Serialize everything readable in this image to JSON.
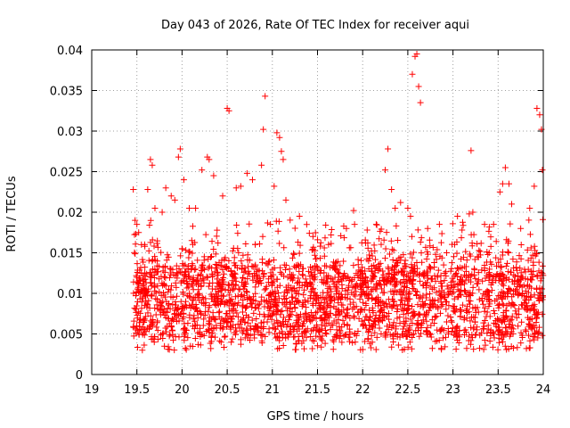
{
  "chart_data": {
    "type": "scatter",
    "title": "Day 043 of 2026, Rate Of TEC Index for receiver aqui",
    "xlabel": "GPS time / hours",
    "ylabel": "ROTI / TECUs",
    "xlim": [
      19,
      24
    ],
    "ylim": [
      0,
      0.04
    ],
    "x_ticks": [
      19,
      19.5,
      20,
      20.5,
      21,
      21.5,
      22,
      22.5,
      23,
      23.5,
      24
    ],
    "x_tick_labels": [
      "19",
      "19.5",
      "20",
      "20.5",
      "21",
      "21.5",
      "22",
      "22.5",
      "23",
      "23.5",
      "24"
    ],
    "y_ticks": [
      0,
      0.005,
      0.01,
      0.015,
      0.02,
      0.025,
      0.03,
      0.035,
      0.04
    ],
    "y_tick_labels": [
      "0",
      "0.005",
      "0.01",
      "0.015",
      "0.02",
      "0.025",
      "0.03",
      "0.035",
      "0.04"
    ],
    "grid": true,
    "marker": "+",
    "marker_color": "#ff0000",
    "series": [
      {
        "name": "ROTI",
        "points": [
          [
            19.46,
            0.0228
          ],
          [
            19.48,
            0.019
          ],
          [
            19.5,
            0.0185
          ],
          [
            19.52,
            0.0175
          ],
          [
            19.55,
            0.016
          ],
          [
            19.62,
            0.0228
          ],
          [
            19.65,
            0.0265
          ],
          [
            19.67,
            0.0258
          ],
          [
            19.7,
            0.0205
          ],
          [
            19.78,
            0.02
          ],
          [
            19.82,
            0.023
          ],
          [
            19.88,
            0.022
          ],
          [
            19.92,
            0.0215
          ],
          [
            19.96,
            0.0268
          ],
          [
            19.98,
            0.0278
          ],
          [
            20.02,
            0.024
          ],
          [
            20.08,
            0.0205
          ],
          [
            20.15,
            0.0205
          ],
          [
            20.22,
            0.0252
          ],
          [
            20.28,
            0.0268
          ],
          [
            20.3,
            0.0265
          ],
          [
            20.35,
            0.0245
          ],
          [
            20.45,
            0.022
          ],
          [
            20.5,
            0.0328
          ],
          [
            20.52,
            0.0325
          ],
          [
            20.6,
            0.023
          ],
          [
            20.65,
            0.0232
          ],
          [
            20.72,
            0.0248
          ],
          [
            20.78,
            0.024
          ],
          [
            20.88,
            0.0258
          ],
          [
            20.9,
            0.0302
          ],
          [
            20.92,
            0.0343
          ],
          [
            21.02,
            0.0232
          ],
          [
            21.05,
            0.0298
          ],
          [
            21.08,
            0.0292
          ],
          [
            21.1,
            0.0275
          ],
          [
            21.12,
            0.0265
          ],
          [
            21.15,
            0.0215
          ],
          [
            21.3,
            0.0195
          ],
          [
            21.45,
            0.017
          ],
          [
            21.65,
            0.0172
          ],
          [
            21.82,
            0.018
          ],
          [
            21.9,
            0.0202
          ],
          [
            22.05,
            0.0178
          ],
          [
            22.15,
            0.0185
          ],
          [
            22.25,
            0.0252
          ],
          [
            22.28,
            0.0278
          ],
          [
            22.32,
            0.0228
          ],
          [
            22.36,
            0.0205
          ],
          [
            22.42,
            0.0212
          ],
          [
            22.5,
            0.0205
          ],
          [
            22.53,
            0.0195
          ],
          [
            22.55,
            0.037
          ],
          [
            22.58,
            0.0392
          ],
          [
            22.6,
            0.0395
          ],
          [
            22.62,
            0.0355
          ],
          [
            22.64,
            0.0335
          ],
          [
            22.72,
            0.018
          ],
          [
            22.85,
            0.0185
          ],
          [
            23.05,
            0.0195
          ],
          [
            23.1,
            0.0178
          ],
          [
            23.18,
            0.0198
          ],
          [
            23.2,
            0.0276
          ],
          [
            23.22,
            0.02
          ],
          [
            23.35,
            0.0185
          ],
          [
            23.45,
            0.0185
          ],
          [
            23.52,
            0.0225
          ],
          [
            23.55,
            0.0235
          ],
          [
            23.58,
            0.0255
          ],
          [
            23.62,
            0.0235
          ],
          [
            23.65,
            0.021
          ],
          [
            23.75,
            0.018
          ],
          [
            23.85,
            0.0205
          ],
          [
            23.9,
            0.0232
          ],
          [
            23.93,
            0.0328
          ],
          [
            23.96,
            0.032
          ],
          [
            23.98,
            0.0302
          ],
          [
            23.99,
            0.0252
          ]
        ]
      }
    ]
  }
}
